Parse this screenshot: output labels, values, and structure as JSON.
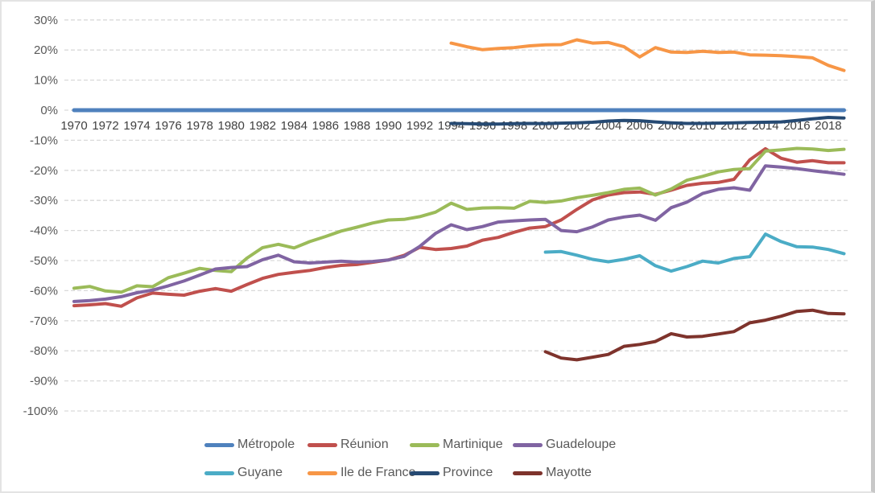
{
  "chart_data": {
    "type": "line",
    "title": "",
    "xlabel": "",
    "ylabel": "",
    "x_start": 1970,
    "x_end": 2019,
    "ylim": [
      -100,
      30
    ],
    "grid": "horizontal-dashed",
    "legend_position": "bottom",
    "x_tick_labels": [
      "1970",
      "1972",
      "1974",
      "1976",
      "1978",
      "1980",
      "1982",
      "1984",
      "1986",
      "1988",
      "1990",
      "1992",
      "1994",
      "1996",
      "1998",
      "2000",
      "2002",
      "2004",
      "2006",
      "2008",
      "2010",
      "2012",
      "2014",
      "2016",
      "2018"
    ],
    "y_ticks": [
      {
        "value": 30,
        "label": "30%"
      },
      {
        "value": 20,
        "label": "20%"
      },
      {
        "value": 10,
        "label": "10%"
      },
      {
        "value": 0,
        "label": "0%"
      },
      {
        "value": -10,
        "label": "-10%"
      },
      {
        "value": -20,
        "label": "-20%"
      },
      {
        "value": -30,
        "label": "-30%"
      },
      {
        "value": -40,
        "label": "-40%"
      },
      {
        "value": -50,
        "label": "-50%"
      },
      {
        "value": -60,
        "label": "-60%"
      },
      {
        "value": -70,
        "label": "-70%"
      },
      {
        "value": -80,
        "label": "-80%"
      },
      {
        "value": -90,
        "label": "-90%"
      },
      {
        "value": -100,
        "label": "-100%"
      }
    ],
    "series": [
      {
        "name": "Métropole",
        "color": "#4F81BD",
        "stroke_width": 5,
        "start_year": 1970,
        "values": [
          0,
          0,
          0,
          0,
          0,
          0,
          0,
          0,
          0,
          0,
          0,
          0,
          0,
          0,
          0,
          0,
          0,
          0,
          0,
          0,
          0,
          0,
          0,
          0,
          0,
          0,
          0,
          0,
          0,
          0,
          0,
          0,
          0,
          0,
          0,
          0,
          0,
          0,
          0,
          0,
          0,
          0,
          0,
          0,
          0,
          0,
          0,
          0,
          0,
          0
        ]
      },
      {
        "name": "Réunion",
        "color": "#C0504D",
        "stroke_width": 4,
        "start_year": 1970,
        "values": [
          -65,
          -64.7,
          -64.3,
          -65.2,
          -62.4,
          -60.8,
          -61.2,
          -61.5,
          -60.2,
          -59.3,
          -60.2,
          -58,
          -55.9,
          -54.6,
          -53.9,
          -53.3,
          -52.3,
          -51.6,
          -51.3,
          -50.6,
          -49.8,
          -48.3,
          -45.6,
          -46.3,
          -46,
          -45.2,
          -43.2,
          -42.3,
          -40.6,
          -39.2,
          -38.7,
          -36.5,
          -33,
          -29.8,
          -28.2,
          -27.4,
          -27.2,
          -28,
          -26.6,
          -25,
          -24.3,
          -24,
          -23,
          -16.5,
          -12.8,
          -16,
          -17.3,
          -16.8,
          -17.5,
          -17.5
        ]
      },
      {
        "name": "Martinique",
        "color": "#9BBB59",
        "stroke_width": 4,
        "start_year": 1970,
        "values": [
          -59.2,
          -58.6,
          -60.1,
          -60.5,
          -58.4,
          -58.7,
          -55.7,
          -54.2,
          -52.6,
          -53.3,
          -53.7,
          -49.2,
          -45.7,
          -44.6,
          -45.8,
          -43.7,
          -42,
          -40.2,
          -38.9,
          -37.5,
          -36.5,
          -36.3,
          -35.4,
          -33.9,
          -30.9,
          -33,
          -32.5,
          -32.4,
          -32.6,
          -30.3,
          -30.7,
          -30.2,
          -29.1,
          -28.3,
          -27.4,
          -26.3,
          -25.9,
          -28.2,
          -26.2,
          -23.3,
          -22,
          -20.5,
          -19.7,
          -19.4,
          -13.6,
          -13.2,
          -12.7,
          -12.9,
          -13.4,
          -13
        ]
      },
      {
        "name": "Guadeloupe",
        "color": "#8064A2",
        "stroke_width": 4,
        "start_year": 1970,
        "values": [
          -63.6,
          -63.3,
          -62.8,
          -62,
          -60.7,
          -59.8,
          -58.4,
          -56.8,
          -54.8,
          -52.8,
          -52.3,
          -52,
          -49.7,
          -48.2,
          -50.4,
          -50.8,
          -50.5,
          -50.2,
          -50.5,
          -50.3,
          -49.8,
          -48.6,
          -45.3,
          -41,
          -38.1,
          -39.7,
          -38.7,
          -37.2,
          -36.8,
          -36.5,
          -36.3,
          -40,
          -40.4,
          -38.8,
          -36.5,
          -35.5,
          -34.9,
          -36.6,
          -32.4,
          -30.6,
          -27.7,
          -26.3,
          -25.8,
          -26.6,
          -18.5,
          -18.9,
          -19.4,
          -20.1,
          -20.7,
          -21.3
        ]
      },
      {
        "name": "Guyane",
        "color": "#4BACC6",
        "stroke_width": 4,
        "start_year": 2000,
        "values": [
          -47.2,
          -47,
          -48.2,
          -49.6,
          -50.4,
          -49.6,
          -48.4,
          -51.7,
          -53.5,
          -52,
          -50.2,
          -50.8,
          -49.3,
          -48.7,
          -41.2,
          -43.7,
          -45.4,
          -45.5,
          -46.3,
          -47.7
        ]
      },
      {
        "name": "Ile de France",
        "color": "#F79646",
        "stroke_width": 4,
        "start_year": 1994,
        "values": [
          22.3,
          21.1,
          20.1,
          20.5,
          20.8,
          21.4,
          21.7,
          21.8,
          23.4,
          22.3,
          22.5,
          21.1,
          17.7,
          20.8,
          19.3,
          19.2,
          19.6,
          19.2,
          19.3,
          18.4,
          18.3,
          18.1,
          17.8,
          17.4,
          14.9,
          13.2
        ]
      },
      {
        "name": "Province",
        "color": "#264A73",
        "stroke_width": 4,
        "start_year": 1994,
        "values": [
          -4.4,
          -4.5,
          -4.6,
          -4.6,
          -4.5,
          -4.4,
          -4.5,
          -4.3,
          -4.2,
          -4,
          -3.6,
          -3.4,
          -3.5,
          -3.9,
          -4.2,
          -4.4,
          -4.4,
          -4.3,
          -4.2,
          -4.1,
          -4,
          -3.9,
          -3.4,
          -2.9,
          -2.4,
          -2.6
        ]
      },
      {
        "name": "Mayotte",
        "color": "#7E332C",
        "stroke_width": 4,
        "start_year": 2000,
        "values": [
          -80.3,
          -82.4,
          -83,
          -82.1,
          -81.2,
          -78.5,
          -77.9,
          -76.9,
          -74.3,
          -75.4,
          -75.2,
          -74.4,
          -73.6,
          -70.7,
          -69.8,
          -68.5,
          -66.9,
          -66.5,
          -67.6,
          -67.7
        ]
      }
    ],
    "legend_rows": [
      [
        "Métropole",
        "Réunion",
        "Martinique",
        "Guadeloupe"
      ],
      [
        "Guyane",
        "Ile de France",
        "Province",
        "Mayotte"
      ]
    ],
    "colors": {
      "grid": "#D9D9D9",
      "y_axis_text": "#595959",
      "x_axis_text": "#404040",
      "legend_text": "#595959"
    }
  }
}
